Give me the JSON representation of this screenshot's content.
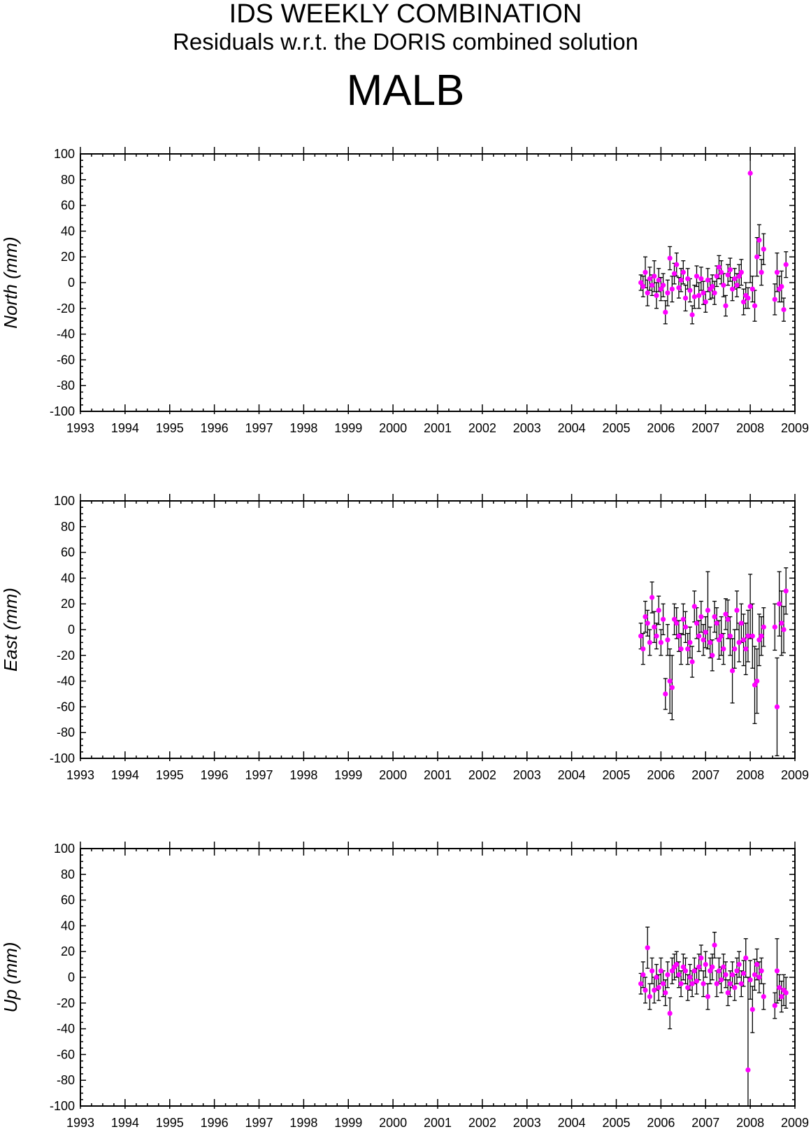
{
  "header": {
    "title": "IDS WEEKLY COMBINATION",
    "subtitle": "Residuals w.r.t. the DORIS combined solution",
    "station": "MALB"
  },
  "colors": {
    "marker": "#ff00ff",
    "errorbar": "#000000",
    "axis": "#000000"
  },
  "chart_data": [
    {
      "type": "scatter",
      "component": "North",
      "ylabel": "North (mm)",
      "xlim": [
        1993,
        2009
      ],
      "ylim": [
        -100,
        100
      ],
      "x_ticks": [
        1993,
        1994,
        1995,
        1996,
        1997,
        1998,
        1999,
        2000,
        2001,
        2002,
        2003,
        2004,
        2005,
        2006,
        2007,
        2008,
        2009
      ],
      "y_ticks": [
        100,
        80,
        60,
        40,
        20,
        0,
        -20,
        -40,
        -60,
        -80,
        -100
      ],
      "grid": false,
      "series": [
        {
          "x": [
            2005.55,
            2005.6,
            2005.65,
            2005.7,
            2005.75,
            2005.8,
            2005.85,
            2005.9,
            2005.95,
            2006.0,
            2006.05,
            2006.1,
            2006.15,
            2006.2,
            2006.25,
            2006.3,
            2006.35,
            2006.4,
            2006.45,
            2006.5,
            2006.55,
            2006.6,
            2006.65,
            2006.7,
            2006.75,
            2006.8,
            2006.85,
            2006.9,
            2006.95,
            2007.0,
            2007.05,
            2007.1,
            2007.15,
            2007.2,
            2007.25,
            2007.3,
            2007.35,
            2007.4,
            2007.45,
            2007.5,
            2007.55,
            2007.6,
            2007.65,
            2007.7,
            2007.75,
            2007.8,
            2007.85,
            2007.9,
            2007.95,
            2008.0,
            2008.05,
            2008.1,
            2008.15,
            2008.2,
            2008.25,
            2008.3,
            2008.55,
            2008.6,
            2008.65,
            2008.7,
            2008.75,
            2008.8
          ],
          "y": [
            0,
            -3,
            8,
            -8,
            3,
            -2,
            5,
            -10,
            2,
            -5,
            -2,
            -23,
            -8,
            19,
            -5,
            7,
            14,
            -4,
            2,
            8,
            -12,
            3,
            -6,
            -25,
            -11,
            5,
            -10,
            3,
            -8,
            -15,
            2,
            -5,
            -3,
            -8,
            5,
            12,
            8,
            -2,
            -18,
            6,
            10,
            -5,
            3,
            -2,
            5,
            8,
            -15,
            -10,
            -12,
            85,
            -5,
            -18,
            20,
            33,
            8,
            26,
            -13,
            8,
            -5,
            -3,
            -21,
            14
          ],
          "err": [
            6,
            8,
            12,
            10,
            9,
            8,
            12,
            10,
            9,
            9,
            9,
            9,
            10,
            9,
            10,
            8,
            9,
            8,
            9,
            9,
            10,
            8,
            9,
            7,
            9,
            8,
            10,
            9,
            9,
            8,
            9,
            8,
            9,
            9,
            8,
            9,
            9,
            9,
            8,
            8,
            9,
            9,
            8,
            9,
            9,
            10,
            10,
            10,
            8,
            85,
            10,
            12,
            15,
            12,
            10,
            12,
            12,
            15,
            10,
            12,
            9,
            10
          ]
        }
      ]
    },
    {
      "type": "scatter",
      "component": "East",
      "ylabel": "East (mm)",
      "xlim": [
        1993,
        2009
      ],
      "ylim": [
        -100,
        100
      ],
      "x_ticks": [
        1993,
        1994,
        1995,
        1996,
        1997,
        1998,
        1999,
        2000,
        2001,
        2002,
        2003,
        2004,
        2005,
        2006,
        2007,
        2008,
        2009
      ],
      "y_ticks": [
        100,
        80,
        60,
        40,
        20,
        0,
        -20,
        -40,
        -60,
        -80,
        -100
      ],
      "grid": false,
      "series": [
        {
          "x": [
            2005.55,
            2005.6,
            2005.65,
            2005.7,
            2005.75,
            2005.8,
            2005.85,
            2005.9,
            2005.95,
            2006.0,
            2006.05,
            2006.1,
            2006.15,
            2006.2,
            2006.25,
            2006.3,
            2006.35,
            2006.4,
            2006.45,
            2006.5,
            2006.55,
            2006.6,
            2006.65,
            2006.7,
            2006.75,
            2006.8,
            2006.85,
            2006.9,
            2006.95,
            2007.0,
            2007.05,
            2007.1,
            2007.15,
            2007.2,
            2007.25,
            2007.3,
            2007.35,
            2007.4,
            2007.45,
            2007.5,
            2007.55,
            2007.6,
            2007.65,
            2007.7,
            2007.75,
            2007.8,
            2007.85,
            2007.9,
            2007.95,
            2008.0,
            2008.05,
            2008.1,
            2008.15,
            2008.2,
            2008.25,
            2008.3,
            2008.55,
            2008.6,
            2008.65,
            2008.7,
            2008.75,
            2008.8
          ],
          "y": [
            -5,
            -15,
            10,
            5,
            -10,
            25,
            2,
            -5,
            15,
            -10,
            8,
            -50,
            -8,
            -40,
            -45,
            8,
            5,
            -5,
            -15,
            8,
            2,
            -15,
            -10,
            -25,
            18,
            5,
            -5,
            10,
            -8,
            -2,
            15,
            -10,
            -20,
            10,
            5,
            -8,
            -5,
            -15,
            12,
            8,
            -5,
            -32,
            -15,
            15,
            -10,
            5,
            -8,
            -15,
            -5,
            18,
            -5,
            -43,
            -40,
            -8,
            -5,
            2,
            2,
            -60,
            20,
            5,
            0,
            30
          ],
          "err": [
            10,
            12,
            12,
            10,
            10,
            12,
            12,
            10,
            11,
            10,
            12,
            12,
            12,
            25,
            25,
            12,
            12,
            12,
            12,
            12,
            12,
            12,
            12,
            12,
            12,
            12,
            12,
            12,
            12,
            12,
            30,
            12,
            12,
            12,
            12,
            15,
            15,
            12,
            12,
            15,
            15,
            25,
            15,
            15,
            15,
            15,
            20,
            20,
            20,
            25,
            25,
            30,
            25,
            20,
            15,
            15,
            18,
            38,
            25,
            25,
            18,
            18
          ]
        }
      ]
    },
    {
      "type": "scatter",
      "component": "Up",
      "ylabel": "Up (mm)",
      "xlim": [
        1993,
        2009
      ],
      "ylim": [
        -100,
        100
      ],
      "x_ticks": [
        1993,
        1994,
        1995,
        1996,
        1997,
        1998,
        1999,
        2000,
        2001,
        2002,
        2003,
        2004,
        2005,
        2006,
        2007,
        2008,
        2009
      ],
      "y_ticks": [
        100,
        80,
        60,
        40,
        20,
        0,
        -20,
        -40,
        -60,
        -80,
        -100
      ],
      "grid": false,
      "series": [
        {
          "x": [
            2005.55,
            2005.6,
            2005.65,
            2005.7,
            2005.75,
            2005.8,
            2005.85,
            2005.9,
            2005.95,
            2006.0,
            2006.05,
            2006.1,
            2006.15,
            2006.2,
            2006.25,
            2006.3,
            2006.35,
            2006.4,
            2006.45,
            2006.5,
            2006.55,
            2006.6,
            2006.65,
            2006.7,
            2006.75,
            2006.8,
            2006.85,
            2006.9,
            2006.95,
            2007.0,
            2007.05,
            2007.1,
            2007.15,
            2007.2,
            2007.25,
            2007.3,
            2007.35,
            2007.4,
            2007.45,
            2007.5,
            2007.55,
            2007.6,
            2007.65,
            2007.7,
            2007.75,
            2007.8,
            2007.85,
            2007.9,
            2007.95,
            2008.0,
            2008.05,
            2008.1,
            2008.15,
            2008.2,
            2008.25,
            2008.3,
            2008.55,
            2008.6,
            2008.65,
            2008.7,
            2008.75,
            2008.8
          ],
          "y": [
            -5,
            2,
            -10,
            23,
            -15,
            5,
            -10,
            0,
            -8,
            5,
            -5,
            -12,
            2,
            -28,
            5,
            8,
            10,
            2,
            -5,
            8,
            5,
            -8,
            0,
            -5,
            5,
            -3,
            8,
            15,
            -5,
            10,
            -15,
            5,
            8,
            25,
            -5,
            5,
            -2,
            8,
            2,
            -12,
            -5,
            2,
            -8,
            5,
            10,
            -5,
            3,
            15,
            -72,
            -2,
            -25,
            2,
            10,
            0,
            5,
            -15,
            -22,
            5,
            -8,
            -15,
            -10,
            -12
          ],
          "err": [
            8,
            10,
            10,
            16,
            10,
            10,
            10,
            10,
            10,
            10,
            10,
            10,
            10,
            12,
            10,
            10,
            10,
            10,
            10,
            10,
            10,
            10,
            10,
            10,
            10,
            10,
            10,
            10,
            10,
            10,
            10,
            10,
            10,
            10,
            10,
            10,
            10,
            10,
            10,
            10,
            10,
            10,
            10,
            10,
            10,
            10,
            10,
            15,
            72,
            15,
            18,
            12,
            12,
            12,
            10,
            10,
            10,
            25,
            10,
            12,
            12,
            12
          ]
        }
      ]
    }
  ]
}
